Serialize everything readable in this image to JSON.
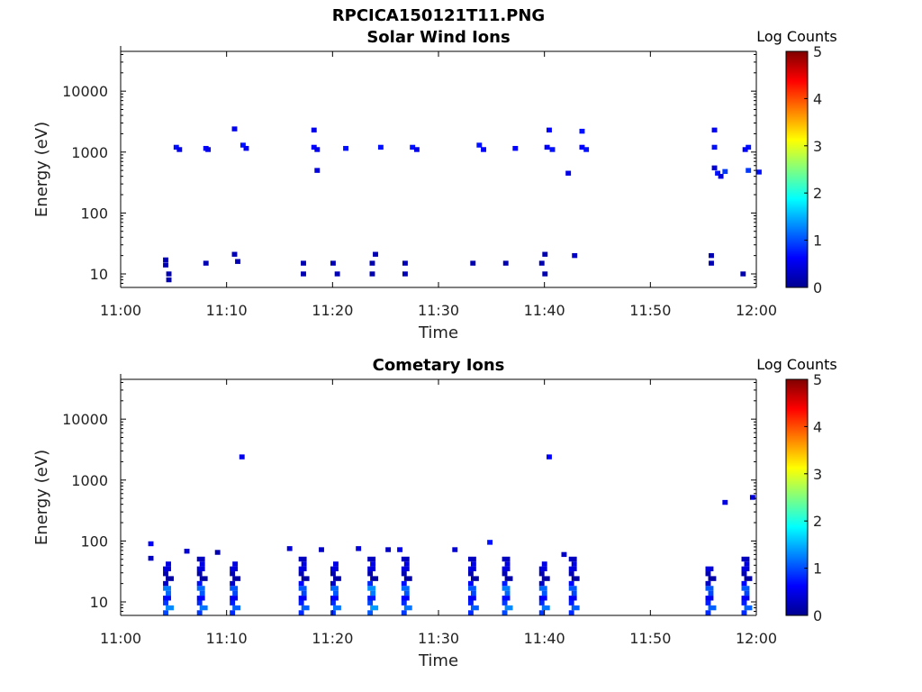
{
  "figure_title": "RPCICA150121T11.PNG",
  "chart_data": [
    {
      "type": "heatmap",
      "title": "Solar Wind Ions",
      "xlabel": "Time",
      "ylabel": "Energy (eV)",
      "xlim": [
        "11:00",
        "12:00"
      ],
      "ylim": [
        6,
        45000
      ],
      "y_scale": "log",
      "x_ticks": [
        "11:00",
        "11:10",
        "11:20",
        "11:30",
        "11:40",
        "11:50",
        "12:00"
      ],
      "y_ticks": [
        "10",
        "100",
        "1000",
        "10000"
      ],
      "colorbar": {
        "label": "Log Counts",
        "range": [
          0,
          5
        ],
        "ticks": [
          "0",
          "1",
          "2",
          "3",
          "4",
          "5"
        ]
      },
      "cells": [
        {
          "t": "11:04.0",
          "e": 17,
          "v": 0.2
        },
        {
          "t": "11:04.0",
          "e": 14,
          "v": 0.2
        },
        {
          "t": "11:04.3",
          "e": 10,
          "v": 0.2
        },
        {
          "t": "11:04.3",
          "e": 8,
          "v": 0.2
        },
        {
          "t": "11:05.0",
          "e": 1200,
          "v": 0.7
        },
        {
          "t": "11:05.3",
          "e": 1100,
          "v": 0.5
        },
        {
          "t": "11:07.8",
          "e": 1150,
          "v": 0.6
        },
        {
          "t": "11:08.0",
          "e": 1100,
          "v": 0.5
        },
        {
          "t": "11:07.8",
          "e": 15,
          "v": 0.2
        },
        {
          "t": "11:10.5",
          "e": 2400,
          "v": 0.5
        },
        {
          "t": "11:11.3",
          "e": 1300,
          "v": 0.7
        },
        {
          "t": "11:11.6",
          "e": 1150,
          "v": 0.6
        },
        {
          "t": "11:10.5",
          "e": 21,
          "v": 0.2
        },
        {
          "t": "11:10.8",
          "e": 16,
          "v": 0.2
        },
        {
          "t": "11:17.0",
          "e": 15,
          "v": 0.2
        },
        {
          "t": "11:17.0",
          "e": 10,
          "v": 0.2
        },
        {
          "t": "11:18.0",
          "e": 2300,
          "v": 0.5
        },
        {
          "t": "11:18.0",
          "e": 1200,
          "v": 0.6
        },
        {
          "t": "11:18.3",
          "e": 1100,
          "v": 0.5
        },
        {
          "t": "11:18.3",
          "e": 500,
          "v": 0.4
        },
        {
          "t": "11:19.8",
          "e": 15,
          "v": 0.2
        },
        {
          "t": "11:20.2",
          "e": 10,
          "v": 0.2
        },
        {
          "t": "11:21.0",
          "e": 1150,
          "v": 0.7
        },
        {
          "t": "11:23.5",
          "e": 15,
          "v": 0.2
        },
        {
          "t": "11:23.8",
          "e": 21,
          "v": 0.2
        },
        {
          "t": "11:23.5",
          "e": 10,
          "v": 0.2
        },
        {
          "t": "11:24.3",
          "e": 1200,
          "v": 0.7
        },
        {
          "t": "11:26.6",
          "e": 15,
          "v": 0.2
        },
        {
          "t": "11:26.6",
          "e": 10,
          "v": 0.2
        },
        {
          "t": "11:27.3",
          "e": 1200,
          "v": 0.7
        },
        {
          "t": "11:27.7",
          "e": 1100,
          "v": 0.5
        },
        {
          "t": "11:33.0",
          "e": 15,
          "v": 0.2
        },
        {
          "t": "11:33.6",
          "e": 1300,
          "v": 0.7
        },
        {
          "t": "11:34.0",
          "e": 1100,
          "v": 0.6
        },
        {
          "t": "11:36.1",
          "e": 15,
          "v": 0.2
        },
        {
          "t": "11:37.0",
          "e": 1150,
          "v": 0.6
        },
        {
          "t": "11:39.5",
          "e": 15,
          "v": 0.2
        },
        {
          "t": "11:39.8",
          "e": 21,
          "v": 0.2
        },
        {
          "t": "11:39.8",
          "e": 10,
          "v": 0.2
        },
        {
          "t": "11:40.2",
          "e": 2300,
          "v": 0.6
        },
        {
          "t": "11:40.0",
          "e": 1200,
          "v": 0.6
        },
        {
          "t": "11:40.5",
          "e": 1100,
          "v": 0.7
        },
        {
          "t": "11:42.0",
          "e": 450,
          "v": 0.5
        },
        {
          "t": "11:42.6",
          "e": 20,
          "v": 0.3
        },
        {
          "t": "11:43.3",
          "e": 2200,
          "v": 0.7
        },
        {
          "t": "11:43.3",
          "e": 1200,
          "v": 0.6
        },
        {
          "t": "11:43.7",
          "e": 1100,
          "v": 0.7
        },
        {
          "t": "11:55.5",
          "e": 20,
          "v": 0.2
        },
        {
          "t": "11:55.5",
          "e": 15,
          "v": 0.2
        },
        {
          "t": "11:55.8",
          "e": 2300,
          "v": 0.6
        },
        {
          "t": "11:55.8",
          "e": 1200,
          "v": 0.7
        },
        {
          "t": "11:55.8",
          "e": 550,
          "v": 0.4
        },
        {
          "t": "11:56.1",
          "e": 450,
          "v": 0.7
        },
        {
          "t": "11:56.4",
          "e": 400,
          "v": 0.4
        },
        {
          "t": "11:56.8",
          "e": 480,
          "v": 0.9
        },
        {
          "t": "11:58.5",
          "e": 10,
          "v": 0.2
        },
        {
          "t": "11:59.0",
          "e": 1200,
          "v": 0.7
        },
        {
          "t": "11:58.7",
          "e": 1100,
          "v": 0.6
        },
        {
          "t": "11:59.0",
          "e": 500,
          "v": 0.9
        },
        {
          "t": "12:00.0",
          "e": 470,
          "v": 0.7
        }
      ]
    },
    {
      "type": "heatmap",
      "title": "Cometary Ions",
      "xlabel": "Time",
      "ylabel": "Energy (eV)",
      "xlim": [
        "11:00",
        "12:00"
      ],
      "ylim": [
        6,
        45000
      ],
      "y_scale": "log",
      "x_ticks": [
        "11:00",
        "11:10",
        "11:20",
        "11:30",
        "11:40",
        "11:50",
        "12:00"
      ],
      "y_ticks": [
        "10",
        "100",
        "1000",
        "10000"
      ],
      "colorbar": {
        "label": "Log Counts",
        "range": [
          0,
          5
        ],
        "ticks": [
          "0",
          "1",
          "2",
          "3",
          "4",
          "5"
        ]
      },
      "columns": [
        {
          "t": "11:04.0",
          "top": 45,
          "bright": 1.3
        },
        {
          "t": "11:07.2",
          "top": 50,
          "bright": 1.2
        },
        {
          "t": "11:10.3",
          "top": 45,
          "bright": 1.1
        },
        {
          "t": "11:16.8",
          "top": 50,
          "bright": 1.1
        },
        {
          "t": "11:19.8",
          "top": 40,
          "bright": 1.2
        },
        {
          "t": "11:23.3",
          "top": 50,
          "bright": 1.4
        },
        {
          "t": "11:26.5",
          "top": 50,
          "bright": 1.2
        },
        {
          "t": "11:32.8",
          "top": 55,
          "bright": 1.1
        },
        {
          "t": "11:36.0",
          "top": 50,
          "bright": 1.3
        },
        {
          "t": "11:39.5",
          "top": 45,
          "bright": 1.2
        },
        {
          "t": "11:42.3",
          "top": 55,
          "bright": 1.1
        },
        {
          "t": "11:55.2",
          "top": 35,
          "bright": 1.1
        },
        {
          "t": "11:58.6",
          "top": 55,
          "bright": 1.1
        }
      ],
      "cells": [
        {
          "t": "11:02.6",
          "e": 90,
          "v": 0.6
        },
        {
          "t": "11:02.6",
          "e": 52,
          "v": 0.3
        },
        {
          "t": "11:06.0",
          "e": 68,
          "v": 0.4
        },
        {
          "t": "11:08.9",
          "e": 65,
          "v": 0.2
        },
        {
          "t": "11:11.2",
          "e": 2400,
          "v": 0.5
        },
        {
          "t": "11:15.7",
          "e": 75,
          "v": 0.4
        },
        {
          "t": "11:18.7",
          "e": 72,
          "v": 0.3
        },
        {
          "t": "11:22.2",
          "e": 75,
          "v": 0.4
        },
        {
          "t": "11:25.0",
          "e": 72,
          "v": 0.3
        },
        {
          "t": "11:26.1",
          "e": 72,
          "v": 0.5
        },
        {
          "t": "11:31.3",
          "e": 72,
          "v": 0.4
        },
        {
          "t": "11:34.6",
          "e": 95,
          "v": 0.7
        },
        {
          "t": "11:40.2",
          "e": 2400,
          "v": 0.6
        },
        {
          "t": "11:41.6",
          "e": 60,
          "v": 0.3
        },
        {
          "t": "11:56.8",
          "e": 430,
          "v": 0.5
        },
        {
          "t": "11:59.4",
          "e": 520,
          "v": 0.4
        }
      ]
    }
  ]
}
